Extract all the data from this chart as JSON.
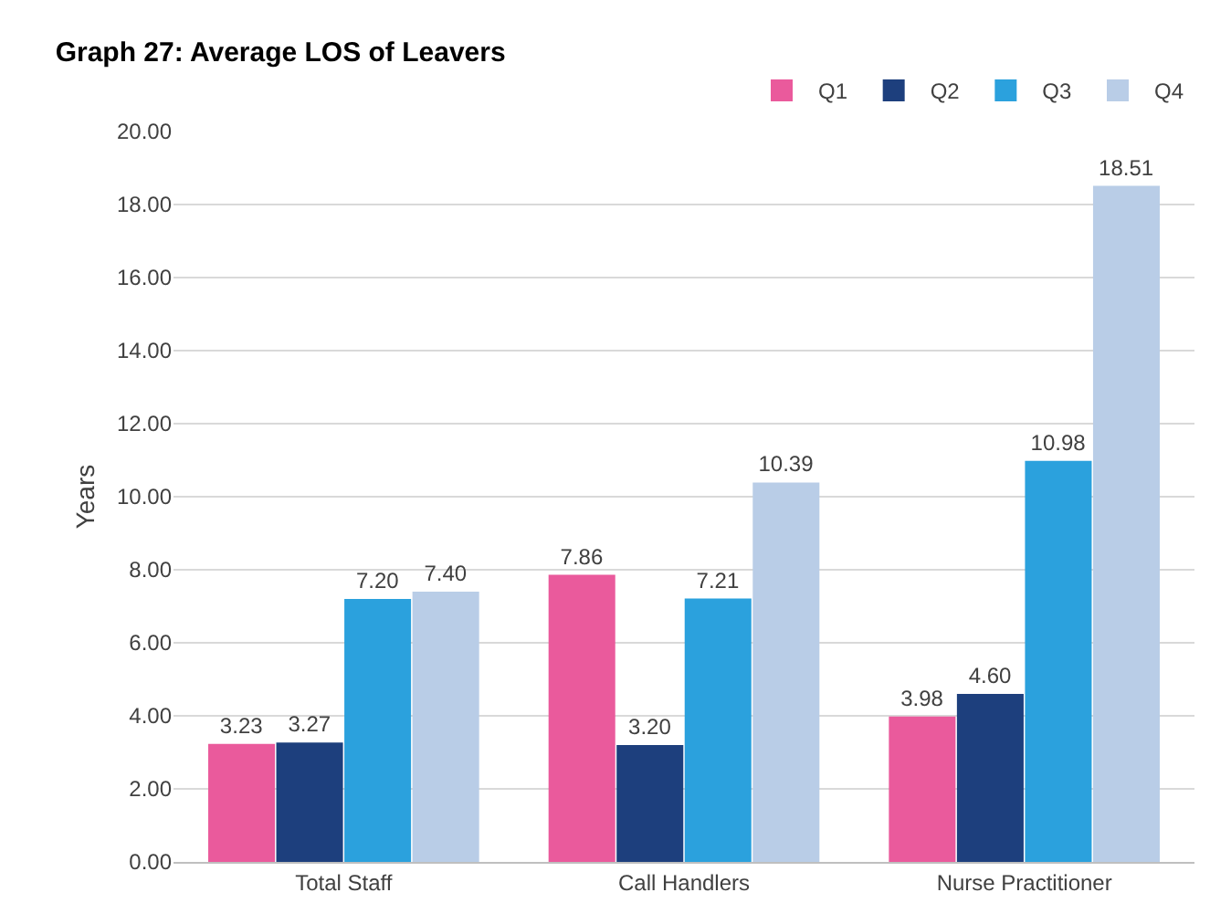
{
  "chart_data": {
    "type": "bar",
    "title": "Graph 27: Average LOS of Leavers",
    "ylabel": "Years",
    "categories": [
      "Total Staff",
      "Call Handlers",
      "Nurse Practitioner"
    ],
    "series": [
      {
        "name": "Q1",
        "color": "#ea5a9c",
        "values": [
          3.23,
          7.86,
          3.98
        ],
        "value_labels": [
          "3.23",
          "7.86",
          "3.98"
        ]
      },
      {
        "name": "Q2",
        "color": "#1d3f7d",
        "values": [
          3.27,
          3.2,
          4.6
        ],
        "value_labels": [
          "3.27",
          "3.20",
          "4.60"
        ]
      },
      {
        "name": "Q3",
        "color": "#2ba1dd",
        "values": [
          7.2,
          7.21,
          10.98
        ],
        "value_labels": [
          "7.20",
          "7.21",
          "10.98"
        ]
      },
      {
        "name": "Q4",
        "color": "#b9cde7",
        "values": [
          7.4,
          10.39,
          18.51
        ],
        "value_labels": [
          "7.40",
          "10.39",
          "18.51"
        ]
      }
    ],
    "ylim": [
      0,
      20
    ],
    "yticks": [
      {
        "value": 0,
        "label": "0.00"
      },
      {
        "value": 2,
        "label": "2.00"
      },
      {
        "value": 4,
        "label": "4.00"
      },
      {
        "value": 6,
        "label": "6.00"
      },
      {
        "value": 8,
        "label": "8.00"
      },
      {
        "value": 10,
        "label": "10.00"
      },
      {
        "value": 12,
        "label": "12.00"
      },
      {
        "value": 14,
        "label": "14.00"
      },
      {
        "value": 16,
        "label": "16.00"
      },
      {
        "value": 18,
        "label": "18.00"
      },
      {
        "value": 20,
        "label": "20.00"
      }
    ],
    "grid": "y",
    "legend": "top right"
  }
}
